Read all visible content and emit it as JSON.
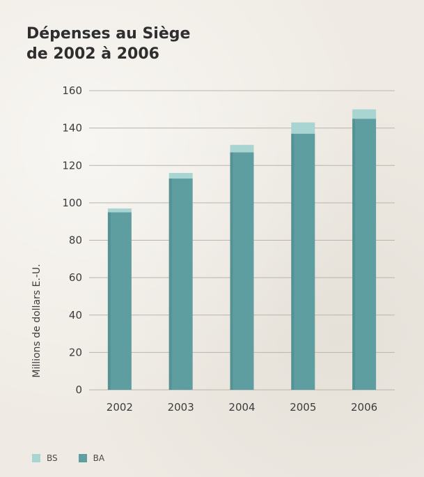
{
  "chart_data": {
    "type": "bar",
    "stacked": true,
    "title_lines": [
      "Dépenses au Siège",
      "de 2002 à 2006"
    ],
    "ylabel": "Millions de dollars E.-U.",
    "xlabel": "",
    "categories": [
      "2002",
      "2003",
      "2004",
      "2005",
      "2006"
    ],
    "ylim": [
      0,
      160
    ],
    "yticks": [
      0,
      20,
      40,
      60,
      80,
      100,
      120,
      140,
      160
    ],
    "grid": true,
    "legend_position": "bottom-left",
    "series": [
      {
        "name": "BA",
        "color": "#5f9ea0",
        "values": [
          95,
          113,
          127,
          137,
          145
        ]
      },
      {
        "name": "BS",
        "color": "#a8d4d1",
        "values": [
          2,
          3,
          4,
          6,
          5
        ]
      }
    ]
  },
  "legend": [
    {
      "label": "BS",
      "color": "#a8d4d1"
    },
    {
      "label": "BA",
      "color": "#5f9ea0"
    }
  ]
}
